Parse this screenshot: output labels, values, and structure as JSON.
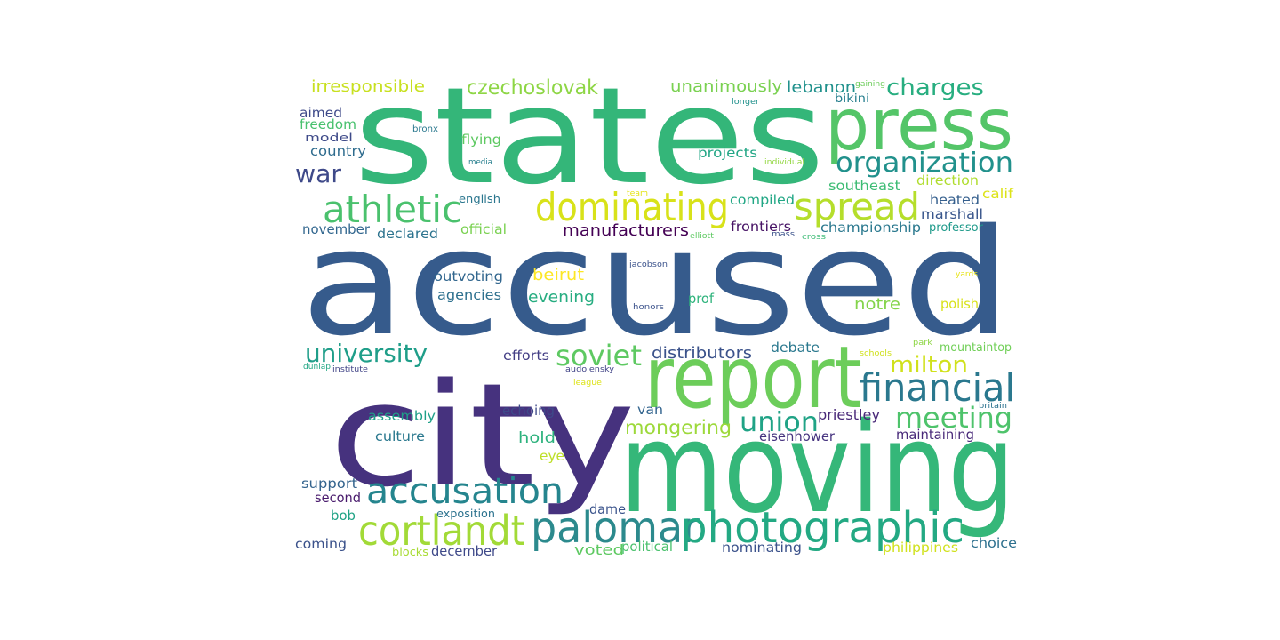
{
  "words": [
    {
      "text": "accused",
      "color": "#365b8c"
    },
    {
      "text": "states",
      "color": "#34b679"
    },
    {
      "text": "city",
      "color": "#46327e"
    },
    {
      "text": "moving",
      "color": "#35b779"
    },
    {
      "text": "report",
      "color": "#6ccd5a"
    },
    {
      "text": "press",
      "color": "#54c568"
    },
    {
      "text": "palomar",
      "color": "#2c8a8d"
    },
    {
      "text": "photographic",
      "color": "#23a983"
    },
    {
      "text": "dominating",
      "color": "#d8e219"
    },
    {
      "text": "cortlandt",
      "color": "#a2da37"
    },
    {
      "text": "financial",
      "color": "#2a788e"
    },
    {
      "text": "accusation",
      "color": "#25858e"
    },
    {
      "text": "athletic",
      "color": "#4ac16d"
    },
    {
      "text": "spread",
      "color": "#b5de2b"
    },
    {
      "text": "organization",
      "color": "#21918c"
    },
    {
      "text": "meeting",
      "color": "#4ec36b"
    },
    {
      "text": "soviet",
      "color": "#5ec962"
    },
    {
      "text": "union",
      "color": "#20a386"
    },
    {
      "text": "university",
      "color": "#1f9e89"
    },
    {
      "text": "milton",
      "color": "#d0e11c"
    },
    {
      "text": "charges",
      "color": "#28ae80"
    },
    {
      "text": "war",
      "color": "#3e4989"
    },
    {
      "text": "czechoslovak",
      "color": "#8ed645"
    },
    {
      "text": "mongering",
      "color": "#9dd93b"
    },
    {
      "text": "accusation",
      "color": "#25858e"
    },
    {
      "text": "irresponsible",
      "color": "#c8e020"
    },
    {
      "text": "unanimously",
      "color": "#7ad151"
    },
    {
      "text": "lebanon",
      "color": "#21918c"
    },
    {
      "text": "distributors",
      "color": "#3b528b"
    },
    {
      "text": "manufacturers",
      "color": "#440154"
    },
    {
      "text": "evening",
      "color": "#27ad81"
    },
    {
      "text": "beirut",
      "color": "#fde725"
    },
    {
      "text": "notre",
      "color": "#84d44b"
    },
    {
      "text": "priestley",
      "color": "#482878"
    },
    {
      "text": "hold",
      "color": "#2db27d"
    },
    {
      "text": "voted",
      "color": "#5ec962"
    },
    {
      "text": "championship",
      "color": "#2a788e"
    },
    {
      "text": "southeast",
      "color": "#3dbc74"
    },
    {
      "text": "frontiers",
      "color": "#471365"
    },
    {
      "text": "marshall",
      "color": "#39568c"
    },
    {
      "text": "heated",
      "color": "#355f8d"
    },
    {
      "text": "calif",
      "color": "#dde318"
    },
    {
      "text": "direction",
      "color": "#b0dd2f"
    },
    {
      "text": "compiled",
      "color": "#22a785"
    },
    {
      "text": "projects",
      "color": "#21a685"
    },
    {
      "text": "flying",
      "color": "#5ec962"
    },
    {
      "text": "country",
      "color": "#2f6c8e"
    },
    {
      "text": "aimed",
      "color": "#3e4a89"
    },
    {
      "text": "freedom",
      "color": "#48c16e"
    },
    {
      "text": "model",
      "color": "#3e4a89"
    },
    {
      "text": "bronx",
      "color": "#2a788e"
    },
    {
      "text": "media",
      "color": "#277f8e"
    },
    {
      "text": "november",
      "color": "#31668e"
    },
    {
      "text": "declared",
      "color": "#2c738e"
    },
    {
      "text": "official",
      "color": "#7ad151"
    },
    {
      "text": "english",
      "color": "#2a768e"
    },
    {
      "text": "outvoting",
      "color": "#31668e"
    },
    {
      "text": "agencies",
      "color": "#2d708e"
    },
    {
      "text": "efforts",
      "color": "#433e85"
    },
    {
      "text": "assembly",
      "color": "#1fa088"
    },
    {
      "text": "culture",
      "color": "#2a788e"
    },
    {
      "text": "echoing",
      "color": "#3e4989"
    },
    {
      "text": "eye",
      "color": "#bddf26"
    },
    {
      "text": "van",
      "color": "#32648e"
    },
    {
      "text": "debate",
      "color": "#2a788e"
    },
    {
      "text": "eisenhower",
      "color": "#46337f"
    },
    {
      "text": "maintaining",
      "color": "#482979"
    },
    {
      "text": "professor",
      "color": "#1f9a8a"
    },
    {
      "text": "mountaintop",
      "color": "#70cf57"
    },
    {
      "text": "polish",
      "color": "#d8e219"
    },
    {
      "text": "prof",
      "color": "#2eb37c"
    },
    {
      "text": "support",
      "color": "#33638d"
    },
    {
      "text": "second",
      "color": "#481a6c"
    },
    {
      "text": "bob",
      "color": "#20a386"
    },
    {
      "text": "coming",
      "color": "#3b528b"
    },
    {
      "text": "blocks",
      "color": "#a8db34"
    },
    {
      "text": "december",
      "color": "#3e4989"
    },
    {
      "text": "exposition",
      "color": "#2c728e"
    },
    {
      "text": "dame",
      "color": "#3a538b"
    },
    {
      "text": "political",
      "color": "#4ac16d"
    },
    {
      "text": "nominating",
      "color": "#3b528b"
    },
    {
      "text": "philippines",
      "color": "#d0e11c"
    },
    {
      "text": "choice",
      "color": "#2d708e"
    },
    {
      "text": "bikini",
      "color": "#277f8e"
    },
    {
      "text": "gaining",
      "color": "#6ccd5a"
    },
    {
      "text": "longer",
      "color": "#21918c"
    },
    {
      "text": "individual",
      "color": "#93d741"
    },
    {
      "text": "team",
      "color": "#e5e419"
    },
    {
      "text": "elliott",
      "color": "#5ec962"
    },
    {
      "text": "mass",
      "color": "#3b528b"
    },
    {
      "text": "cross",
      "color": "#3cbb75"
    },
    {
      "text": "jacobson",
      "color": "#3b528b"
    },
    {
      "text": "honors",
      "color": "#3b528b"
    },
    {
      "text": "audolensky",
      "color": "#414487"
    },
    {
      "text": "league",
      "color": "#dde318"
    },
    {
      "text": "dunlap",
      "color": "#22a785"
    },
    {
      "text": "institute",
      "color": "#414487"
    },
    {
      "text": "schools",
      "color": "#d0e11c"
    },
    {
      "text": "park",
      "color": "#8ed645"
    },
    {
      "text": "yards",
      "color": "#e7e419"
    },
    {
      "text": "britain",
      "color": "#2c728e"
    }
  ]
}
